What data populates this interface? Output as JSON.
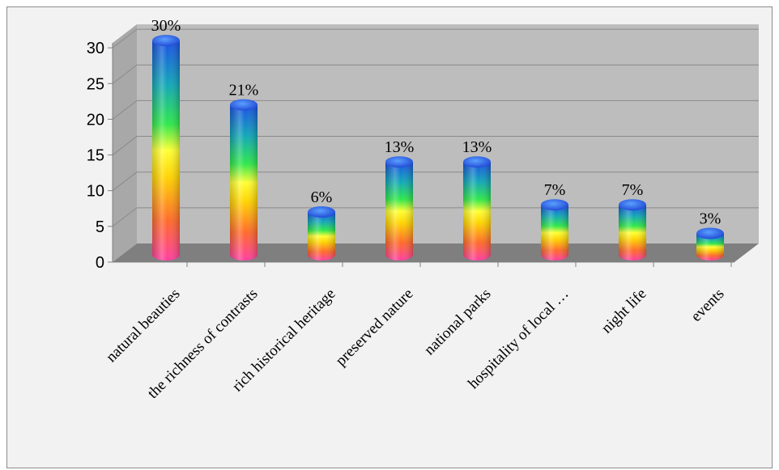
{
  "caption": "",
  "colors": {
    "plot_back": "#bdbdbd",
    "plot_floor": "#7f7f7f",
    "grid": "#8a8a8a",
    "frame_bg": "#f2f2f2"
  },
  "chart_data": {
    "type": "bar",
    "style": "3d-cylinder-rainbow",
    "title": "",
    "xlabel": "",
    "ylabel": "",
    "ylim": [
      0,
      30
    ],
    "yticks": [
      0,
      5,
      10,
      15,
      20,
      25,
      30
    ],
    "grid": true,
    "legend": "none",
    "categories": [
      "natural beauties",
      "the richness of contrasts",
      "rich historical heritage",
      "preserved nature",
      "national parks",
      "hospitality of local …",
      "night life",
      "events"
    ],
    "values": [
      30,
      21,
      6,
      13,
      13,
      7,
      7,
      3
    ],
    "data_labels": [
      "30%",
      "21%",
      "6%",
      "13%",
      "13%",
      "7%",
      "7%",
      "3%"
    ]
  }
}
